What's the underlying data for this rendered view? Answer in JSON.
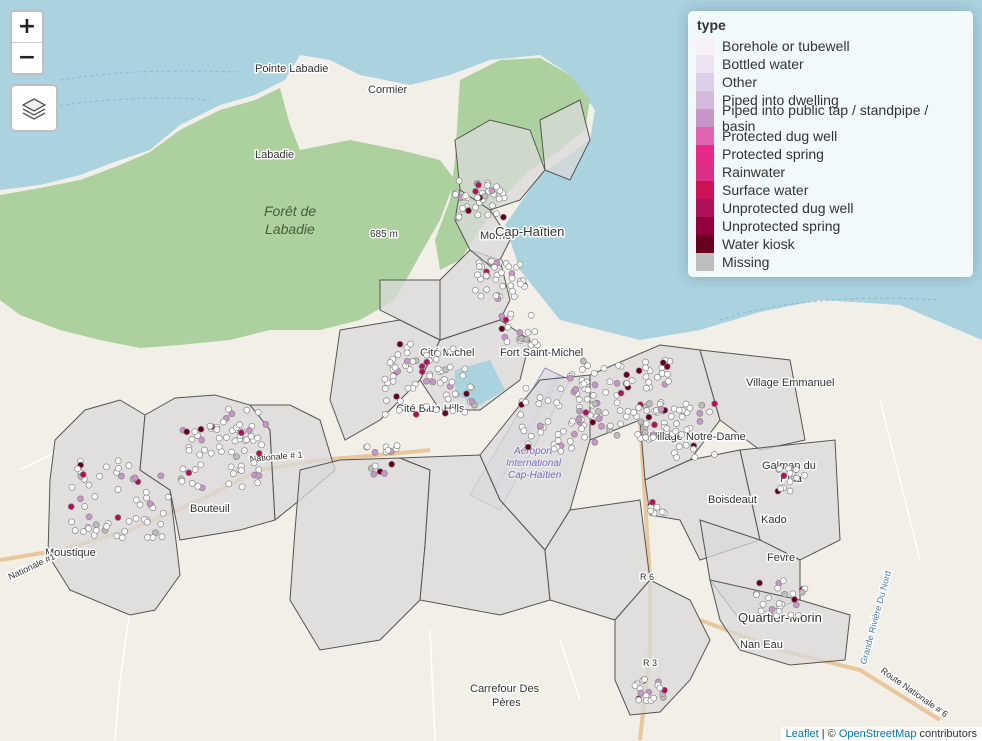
{
  "map": {
    "colors": {
      "sea": "#aad3df",
      "land": "#f2efe9",
      "forest": "#add19e",
      "region_fill": "#d9d9d9",
      "region_stroke": "#555555",
      "point_white": "#ffffff"
    },
    "places": {
      "pointe_labadie": "Pointe Labadie",
      "cormier": "Cormier",
      "labadie": "Labadie",
      "foret_line1": "Forêt de",
      "foret_line2": "Labadie",
      "elevation": "685 m",
      "morne": "Morne",
      "cap_haitien": "Cap-Haïtien",
      "cite_michel": "Cité Michel",
      "fort_saint_michel": "Fort Saint-Michel",
      "cite_blue_hills": "Cité Blue Hills",
      "village_emmanuel": "Village Emmanuel",
      "notre_dame": "Village Notre-Dame",
      "galman": "Galman du",
      "plaa": "Plaa",
      "boisdeaut": "Boisdeaut",
      "kado": "Kado",
      "fevre": "Fevre",
      "quartier_morin": "Quartier-Morin",
      "nan_eau": "Nan Eau",
      "carrefour_line1": "Carrefour Des",
      "carrefour_line2": "Pères",
      "moustique": "Moustique",
      "bouteuil": "Bouteuil",
      "aeroport_line1": "Aéroport",
      "aeroport_line2": "International",
      "aeroport_line3": "Cap-Haïtien",
      "rn1": "Nationale #1",
      "rn1b": "Nationale # 1",
      "rn6": "Route Nationale # 6",
      "r6": "R 6",
      "r3": "R 3",
      "river": "Grande Rivière Du Nord"
    }
  },
  "controls": {
    "zoom_in": "+",
    "zoom_out": "−",
    "layers_icon": "layers-icon"
  },
  "legend": {
    "title": "type",
    "items": [
      {
        "label": "Borehole or tubewell",
        "color": "#f7f0f8"
      },
      {
        "label": "Bottled water",
        "color": "#ece3f0"
      },
      {
        "label": "Other",
        "color": "#dccde8"
      },
      {
        "label": "Piped into dwelling",
        "color": "#d4b9da"
      },
      {
        "label": "Piped into public tap / standpipe / basin",
        "color": "#c994c7"
      },
      {
        "label": "Protected dug well",
        "color": "#df65b0"
      },
      {
        "label": "Protected spring",
        "color": "#e7298a"
      },
      {
        "label": "Rainwater",
        "color": "#dc2f86"
      },
      {
        "label": "Surface water",
        "color": "#ce1256"
      },
      {
        "label": "Unprotected dug well",
        "color": "#b0125a"
      },
      {
        "label": "Unprotected spring",
        "color": "#91003f"
      },
      {
        "label": "Water kiosk",
        "color": "#67001f"
      },
      {
        "label": "Missing",
        "color": "#bdbdbd"
      }
    ]
  },
  "attribution": {
    "leaflet": "Leaflet",
    "sep": " | © ",
    "osm": "OpenStreetMap",
    "contributors": " contributors"
  }
}
